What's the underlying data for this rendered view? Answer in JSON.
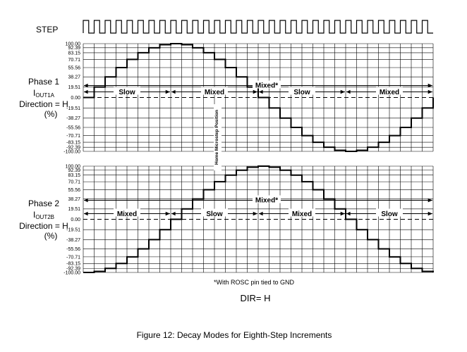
{
  "step_label": "STEP",
  "phase1": {
    "line1": "Phase 1",
    "current_main": "I",
    "current_sub": "OUT1A",
    "direction": "Direction = H",
    "unit": "(%)"
  },
  "phase2": {
    "line1": "Phase 2",
    "current_main": "I",
    "current_sub": "OUT2B",
    "direction": "Direction = H",
    "unit": "(%)"
  },
  "home_label": "Home Microstep Position",
  "footnote": "*With ROSC pin tied to GND",
  "dir_label": "DIR= H",
  "caption": "Figure 12: Decay Modes for Eighth-Step Increments",
  "chart_data": {
    "type": "line",
    "step_mode": "eighth-step",
    "steps_shown": 32,
    "ytick_labels": [
      "100.00",
      "92.39",
      "83.15",
      "70.71",
      "55.56",
      "38.27",
      "19.51",
      "0.00",
      "-19.51",
      "-38.27",
      "-55.56",
      "-70.71",
      "-83.15",
      "-92.39",
      "-100.00"
    ],
    "ytick_values": [
      100.0,
      92.39,
      83.15,
      70.71,
      55.56,
      38.27,
      19.51,
      0.0,
      -19.51,
      -38.27,
      -55.56,
      -70.71,
      -83.15,
      -92.39,
      -100.0
    ],
    "ylim": [
      -100,
      100
    ],
    "series": [
      {
        "name": "IOUT1A",
        "values": [
          0.0,
          19.51,
          38.27,
          55.56,
          70.71,
          83.15,
          92.39,
          98.08,
          100.0,
          98.08,
          92.39,
          83.15,
          70.71,
          55.56,
          38.27,
          19.51,
          0.0,
          -19.51,
          -38.27,
          -55.56,
          -70.71,
          -83.15,
          -92.39,
          -98.08,
          -100.0,
          -98.08,
          -92.39,
          -83.15,
          -70.71,
          -55.56,
          -38.27,
          -19.51,
          0.0
        ],
        "decay_mode_label": "Mixed*",
        "decay_segments": [
          {
            "label": "Slow",
            "from_step": 0,
            "to_step": 8
          },
          {
            "label": "Mixed",
            "from_step": 8,
            "to_step": 16
          },
          {
            "label": "Slow",
            "from_step": 16,
            "to_step": 24
          },
          {
            "label": "Mixed",
            "from_step": 24,
            "to_step": 32
          }
        ]
      },
      {
        "name": "IOUT2B",
        "values": [
          -100.0,
          -98.08,
          -92.39,
          -83.15,
          -70.71,
          -55.56,
          -38.27,
          -19.51,
          0.0,
          19.51,
          38.27,
          55.56,
          70.71,
          83.15,
          92.39,
          98.08,
          100.0,
          98.08,
          92.39,
          83.15,
          70.71,
          55.56,
          38.27,
          19.51,
          0.0,
          -19.51,
          -38.27,
          -55.56,
          -70.71,
          -83.15,
          -92.39,
          -98.08,
          -100.0
        ],
        "decay_mode_label": "Mixed*",
        "decay_segments": [
          {
            "label": "Mixed",
            "from_step": 0,
            "to_step": 8
          },
          {
            "label": "Slow",
            "from_step": 8,
            "to_step": 16
          },
          {
            "label": "Mixed",
            "from_step": 16,
            "to_step": 24
          },
          {
            "label": "Slow",
            "from_step": 24,
            "to_step": 32
          }
        ]
      }
    ]
  }
}
